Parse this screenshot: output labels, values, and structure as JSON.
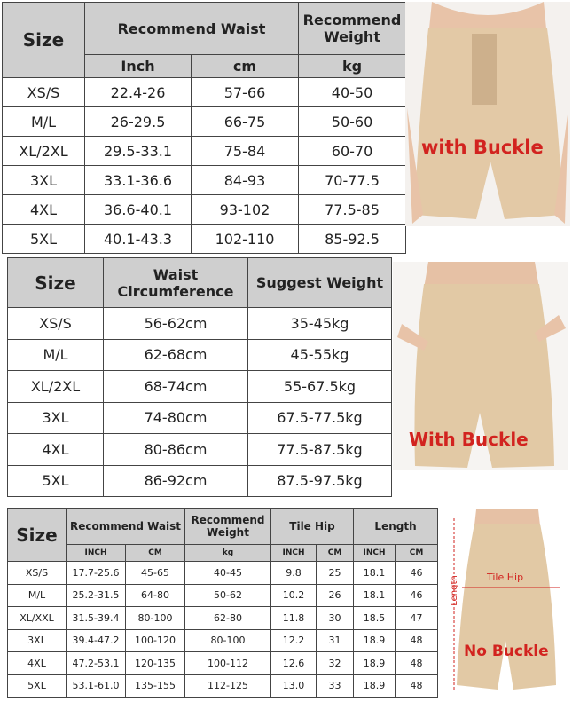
{
  "table1": {
    "size_header": "Size",
    "group_headers": [
      "Recommend Waist",
      "Recommend Weight"
    ],
    "sub_headers": [
      "Inch",
      "cm",
      "kg"
    ],
    "rows": [
      [
        "XS/S",
        "22.4-26",
        "57-66",
        "40-50"
      ],
      [
        "M/L",
        "26-29.5",
        "66-75",
        "50-60"
      ],
      [
        "XL/2XL",
        "29.5-33.1",
        "75-84",
        "60-70"
      ],
      [
        "3XL",
        "33.1-36.6",
        "84-93",
        "70-77.5"
      ],
      [
        "4XL",
        "36.6-40.1",
        "93-102",
        "77.5-85"
      ],
      [
        "5XL",
        "40.1-43.3",
        "102-110",
        "85-92.5"
      ]
    ]
  },
  "image1": {
    "label": "with Buckle"
  },
  "table2": {
    "headers": [
      "Size",
      "Waist Circumference",
      "Suggest Weight"
    ],
    "rows": [
      [
        "XS/S",
        "56-62cm",
        "35-45kg"
      ],
      [
        "M/L",
        "62-68cm",
        "45-55kg"
      ],
      [
        "XL/2XL",
        "68-74cm",
        "55-67.5kg"
      ],
      [
        "3XL",
        "74-80cm",
        "67.5-77.5kg"
      ],
      [
        "4XL",
        "80-86cm",
        "77.5-87.5kg"
      ],
      [
        "5XL",
        "86-92cm",
        "87.5-97.5kg"
      ]
    ]
  },
  "image2": {
    "label": "With Buckle"
  },
  "table3": {
    "size_header": "Size",
    "group_headers": [
      "Recommend Waist",
      "Recommend Weight",
      "Tile Hip",
      "Length"
    ],
    "sub_headers": [
      "INCH",
      "CM",
      "kg",
      "INCH",
      "CM",
      "INCH",
      "CM"
    ],
    "rows": [
      [
        "XS/S",
        "17.7-25.6",
        "45-65",
        "40-45",
        "9.8",
        "25",
        "18.1",
        "46"
      ],
      [
        "M/L",
        "25.2-31.5",
        "64-80",
        "50-62",
        "10.2",
        "26",
        "18.1",
        "46"
      ],
      [
        "XL/XXL",
        "31.5-39.4",
        "80-100",
        "62-80",
        "11.8",
        "30",
        "18.5",
        "47"
      ],
      [
        "3XL",
        "39.4-47.2",
        "100-120",
        "80-100",
        "12.2",
        "31",
        "18.9",
        "48"
      ],
      [
        "4XL",
        "47.2-53.1",
        "120-135",
        "100-112",
        "12.6",
        "32",
        "18.9",
        "48"
      ],
      [
        "5XL",
        "53.1-61.0",
        "135-155",
        "112-125",
        "13.0",
        "33",
        "18.9",
        "48"
      ]
    ]
  },
  "image3": {
    "length_label": "Length",
    "hip_label": "Tile Hip",
    "label": "No Buckle"
  }
}
